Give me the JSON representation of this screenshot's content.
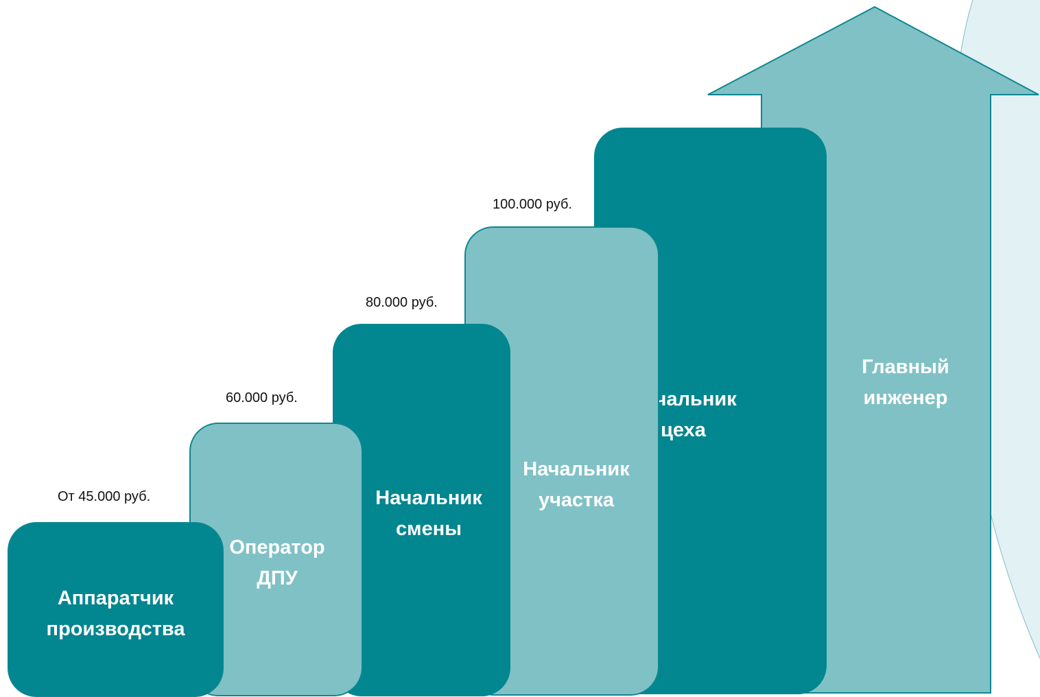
{
  "colors": {
    "dark": "#028690",
    "light": "#80c1c6",
    "outline": "#0d8790",
    "background_tint": "#e2f1f4"
  },
  "steps": [
    {
      "title": "Аппаратчик\nпроизводства",
      "salary": "От 45.000 руб."
    },
    {
      "title": "Оператор\nДПУ",
      "salary": "60.000 руб."
    },
    {
      "title": "Начальник\nсмены",
      "salary": "80.000 руб."
    },
    {
      "title": "Начальник\nучастка",
      "salary": "100.000 руб."
    },
    {
      "title": "Начальник\nцеха"
    },
    {
      "title": "Главный\nинженер"
    }
  ]
}
